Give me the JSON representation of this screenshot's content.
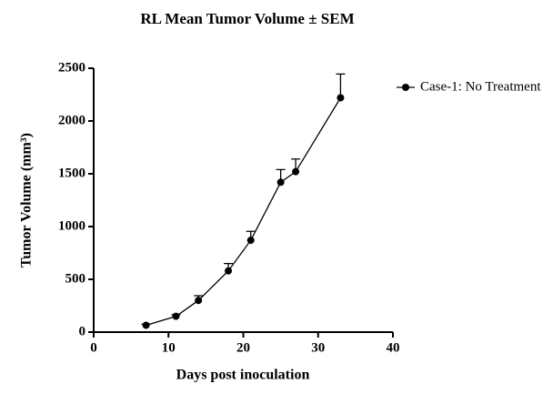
{
  "chart_data": {
    "type": "line",
    "title": "RL Mean Tumor Volume ± SEM",
    "x_label": "Days post inoculation",
    "y_label": "Tumor Volume (mm³)",
    "x": [
      7,
      11,
      14,
      18,
      21,
      25,
      27,
      33
    ],
    "series": [
      {
        "name": "Case-1: No Treatment",
        "color": "#000000",
        "values": [
          65,
          150,
          300,
          580,
          870,
          1420,
          1520,
          2220
        ],
        "errors": [
          10,
          15,
          45,
          70,
          85,
          120,
          120,
          225
        ]
      }
    ],
    "xlim": [
      0,
      40
    ],
    "xticks": [
      0,
      10,
      20,
      30,
      40
    ],
    "ylim": [
      0,
      2500
    ],
    "yticks": [
      0,
      500,
      1000,
      1500,
      2000,
      2500
    ],
    "grid": false,
    "legend": "upper right"
  }
}
